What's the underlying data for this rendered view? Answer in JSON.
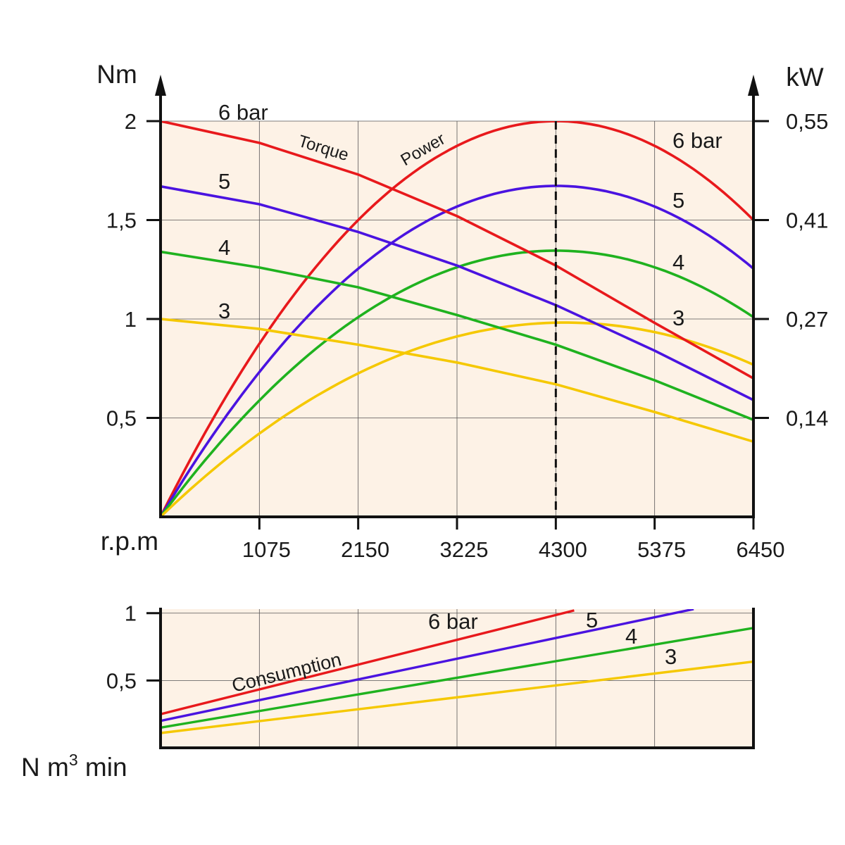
{
  "chart_data": [
    {
      "type": "line",
      "name": "torque-power",
      "x_label": "r.p.m",
      "y_left_label": "Nm",
      "y_right_label": "kW",
      "x_ticks": [
        "1075",
        "2150",
        "3225",
        "4300",
        "5375",
        "6450"
      ],
      "x_range": [
        0,
        6450
      ],
      "y_left_ticks": [
        "0,5",
        "1",
        "1,5",
        "2"
      ],
      "y_left_range": [
        0,
        2
      ],
      "y_right_ticks": [
        "0,14",
        "0,27",
        "0,41",
        "0,55"
      ],
      "y_right_tick_positions_nm": [
        0.5,
        1,
        1.5,
        2
      ],
      "grid": true,
      "background": "#fdf2e6",
      "marker_rpm": 4300,
      "curve_labels": {
        "torque": "Torque",
        "power": "Power"
      },
      "series": [
        {
          "name": "6 bar",
          "label_torque": "6 bar",
          "label_power": "6 bar",
          "color": "#e8191c",
          "torque_nm": [
            [
              0,
              2.0
            ],
            [
              1075,
              1.89
            ],
            [
              2150,
              1.73
            ],
            [
              3225,
              1.52
            ],
            [
              4300,
              1.27
            ],
            [
              5375,
              0.98
            ],
            [
              6450,
              0.7
            ]
          ],
          "power_peak_kw": 0.55,
          "power_peak_rpm": 4300,
          "power_end_kw": 0.41
        },
        {
          "name": "5",
          "label_torque": "5",
          "label_power": "5",
          "color": "#4a13e0",
          "torque_nm": [
            [
              0,
              1.67
            ],
            [
              1075,
              1.58
            ],
            [
              2150,
              1.44
            ],
            [
              3225,
              1.27
            ],
            [
              4300,
              1.07
            ],
            [
              5375,
              0.84
            ],
            [
              6450,
              0.59
            ]
          ],
          "power_peak_kw": 0.46,
          "power_peak_rpm": 4300,
          "power_end_kw": 0.35
        },
        {
          "name": "4",
          "label_torque": "4",
          "label_power": "4",
          "color": "#1fb21f",
          "torque_nm": [
            [
              0,
              1.34
            ],
            [
              1075,
              1.26
            ],
            [
              2150,
              1.16
            ],
            [
              3225,
              1.02
            ],
            [
              4300,
              0.87
            ],
            [
              5375,
              0.69
            ],
            [
              6450,
              0.49
            ]
          ],
          "power_peak_kw": 0.37,
          "power_peak_rpm": 4300,
          "power_end_kw": 0.28
        },
        {
          "name": "3",
          "label_torque": "3",
          "label_power": "3",
          "color": "#f5c800",
          "torque_nm": [
            [
              0,
              1.0
            ],
            [
              1075,
              0.95
            ],
            [
              2150,
              0.87
            ],
            [
              3225,
              0.78
            ],
            [
              4300,
              0.67
            ],
            [
              5375,
              0.53
            ],
            [
              6450,
              0.38
            ]
          ],
          "power_peak_kw": 0.27,
          "power_peak_rpm": 4400,
          "power_end_kw": 0.21
        }
      ]
    },
    {
      "type": "line",
      "name": "consumption",
      "y_label_main": "N m",
      "y_label_sup": "3",
      "y_label_tail": " min",
      "curve_label": "Consumption",
      "x_range": [
        0,
        6450
      ],
      "y_ticks": [
        "0,5",
        "1"
      ],
      "y_range": [
        0,
        1.03
      ],
      "grid": true,
      "background": "#fdf2e6",
      "series": [
        {
          "name": "6 bar",
          "label": "6 bar",
          "color": "#e8191c",
          "points": [
            [
              0,
              0.25
            ],
            [
              4500,
              1.02
            ]
          ]
        },
        {
          "name": "5",
          "label": "5",
          "color": "#4a13e0",
          "points": [
            [
              0,
              0.2
            ],
            [
              5800,
              1.03
            ]
          ]
        },
        {
          "name": "4",
          "label": "4",
          "color": "#1fb21f",
          "points": [
            [
              0,
              0.15
            ],
            [
              6450,
              0.89
            ]
          ]
        },
        {
          "name": "3",
          "label": "3",
          "color": "#f5c800",
          "points": [
            [
              0,
              0.11
            ],
            [
              6450,
              0.64
            ]
          ]
        }
      ]
    }
  ]
}
